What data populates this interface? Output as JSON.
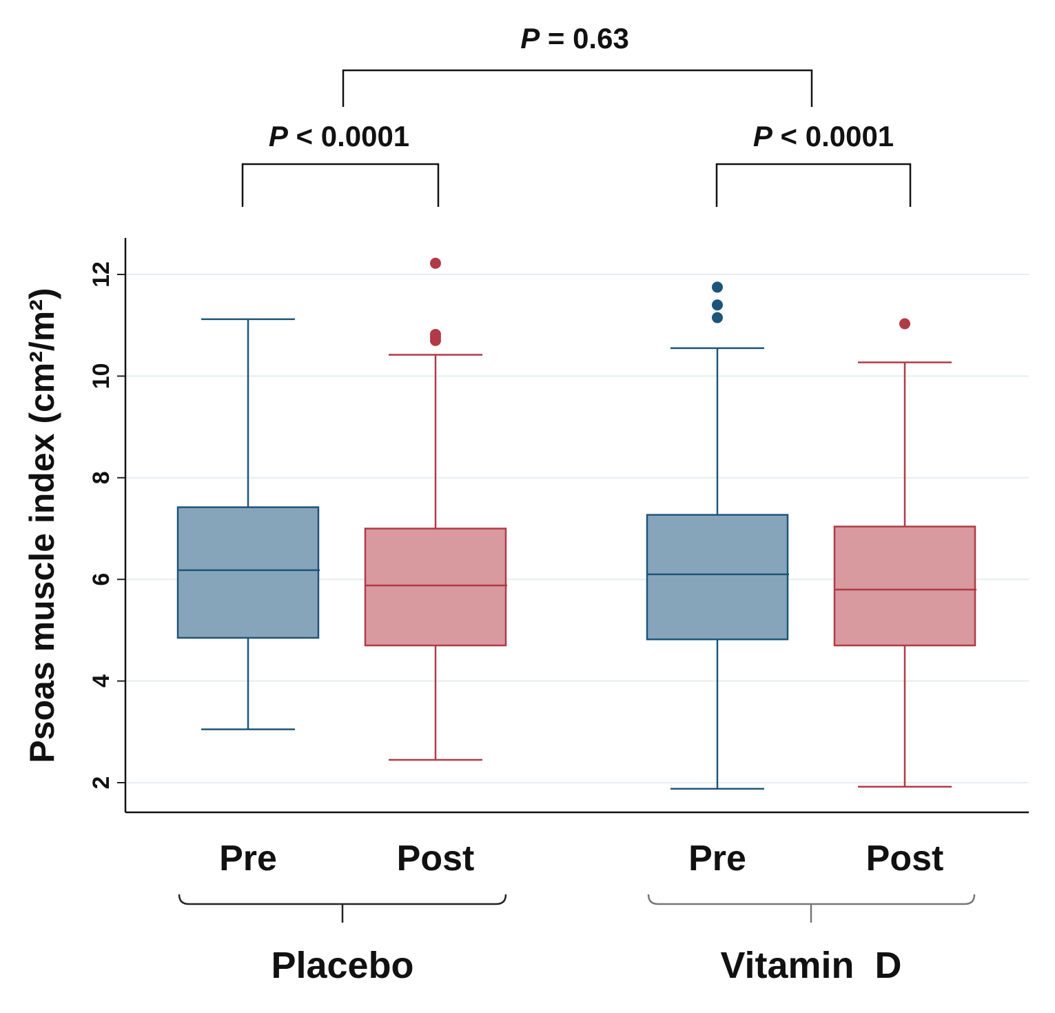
{
  "chart_data": {
    "type": "box",
    "ylabel": "Psoas muscle index (cm²/m²)",
    "ylim": [
      1.4,
      13.1
    ],
    "yticks": [
      2,
      4,
      6,
      8,
      10,
      12
    ],
    "grid": true,
    "groups": [
      {
        "name": "Placebo",
        "boxes": [
          {
            "label": "Pre",
            "series": "pre",
            "q1": 4.85,
            "median": 6.18,
            "q3": 7.42,
            "whisker_low": 3.05,
            "whisker_high": 11.12,
            "outliers": []
          },
          {
            "label": "Post",
            "series": "post",
            "q1": 4.7,
            "median": 5.88,
            "q3": 7.0,
            "whisker_low": 2.45,
            "whisker_high": 10.42,
            "outliers": [
              12.22,
              10.82,
              10.76,
              10.7
            ]
          }
        ]
      },
      {
        "name": "Vitamin  D",
        "boxes": [
          {
            "label": "Pre",
            "series": "pre",
            "q1": 4.82,
            "median": 6.1,
            "q3": 7.27,
            "whisker_low": 1.88,
            "whisker_high": 10.55,
            "outliers": [
              11.75,
              11.4,
              11.15
            ]
          },
          {
            "label": "Post",
            "series": "post",
            "q1": 4.7,
            "median": 5.8,
            "q3": 7.04,
            "whisker_low": 1.92,
            "whisker_high": 10.27,
            "outliers": [
              11.03
            ]
          }
        ]
      }
    ],
    "series_colors": {
      "pre": {
        "fill": "#86a5bb",
        "stroke": "#1d5479"
      },
      "post": {
        "fill": "#d8999f",
        "stroke": "#b03a45"
      }
    },
    "annotations": [
      {
        "id": "placebo-pre-post",
        "italic": "P",
        "text": " < 0.0001"
      },
      {
        "id": "vitd-pre-post",
        "italic": "P",
        "text": " < 0.0001"
      },
      {
        "id": "between-groups",
        "italic": "P",
        "text": " = 0.63"
      }
    ]
  }
}
